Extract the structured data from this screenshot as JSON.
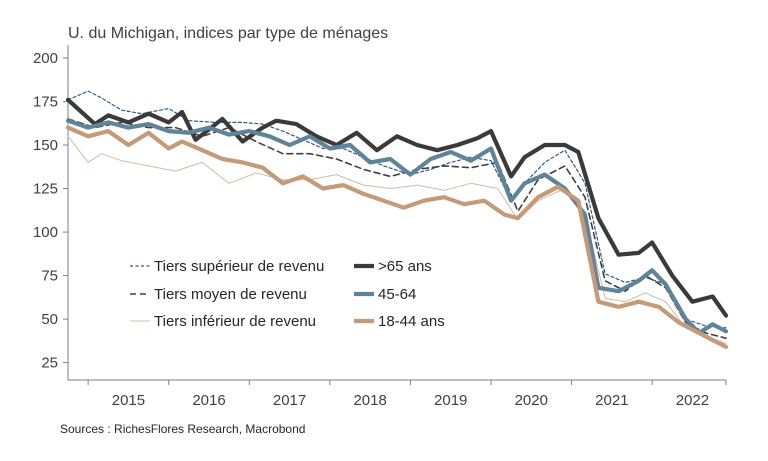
{
  "chart_data": {
    "type": "line",
    "title": "U. du Michigan, indices par type de ménages",
    "source": "Sources : RichesFlores Research, Macrobond",
    "x_start": "2014-10",
    "x_end": "2022-12",
    "ylim": [
      25,
      200
    ],
    "yticks": [
      25,
      50,
      75,
      100,
      125,
      150,
      175,
      200
    ],
    "xtick_labels": [
      {
        "label": "2015",
        "at": "2015-07"
      },
      {
        "label": "2016",
        "at": "2016-07"
      },
      {
        "label": "2017",
        "at": "2017-07"
      },
      {
        "label": "2018",
        "at": "2018-07"
      },
      {
        "label": "2019",
        "at": "2019-07"
      },
      {
        "label": "2020",
        "at": "2020-07"
      },
      {
        "label": "2021",
        "at": "2021-07"
      },
      {
        "label": "2022",
        "at": "2022-07"
      }
    ],
    "xtick_marks": [
      "2015-01",
      "2016-01",
      "2017-01",
      "2018-01",
      "2019-01",
      "2020-01",
      "2021-01",
      "2022-01",
      "2022-12"
    ],
    "legend_placement": "bottom-left",
    "grid": false,
    "series": [
      {
        "name": "Tiers supérieur de revenu",
        "color": "#2e5a8a",
        "style": "dotted",
        "points": [
          [
            "2014-10",
            176
          ],
          [
            "2015-01",
            181
          ],
          [
            "2015-03",
            177
          ],
          [
            "2015-06",
            170
          ],
          [
            "2015-09",
            168
          ],
          [
            "2016-01",
            171
          ],
          [
            "2016-04",
            164
          ],
          [
            "2016-08",
            163
          ],
          [
            "2016-12",
            163
          ],
          [
            "2017-03",
            162
          ],
          [
            "2017-06",
            158
          ],
          [
            "2017-09",
            153
          ],
          [
            "2017-12",
            148
          ],
          [
            "2018-03",
            148
          ],
          [
            "2018-06",
            143
          ],
          [
            "2018-09",
            138
          ],
          [
            "2019-01",
            133
          ],
          [
            "2019-04",
            136
          ],
          [
            "2019-07",
            140
          ],
          [
            "2019-10",
            143
          ],
          [
            "2020-01",
            141
          ],
          [
            "2020-04",
            118
          ],
          [
            "2020-06",
            128
          ],
          [
            "2020-09",
            140
          ],
          [
            "2020-12",
            147
          ],
          [
            "2021-03",
            128
          ],
          [
            "2021-06",
            76
          ],
          [
            "2021-09",
            71
          ],
          [
            "2021-12",
            74
          ],
          [
            "2022-03",
            70
          ],
          [
            "2022-06",
            50
          ],
          [
            "2022-09",
            46
          ],
          [
            "2022-12",
            45
          ]
        ]
      },
      {
        "name": "Tiers moyen de revenu",
        "color": "#404040",
        "style": "dashed",
        "points": [
          [
            "2014-10",
            165
          ],
          [
            "2015-02",
            160
          ],
          [
            "2015-06",
            163
          ],
          [
            "2015-10",
            160
          ],
          [
            "2016-02",
            160
          ],
          [
            "2016-06",
            155
          ],
          [
            "2016-10",
            160
          ],
          [
            "2017-02",
            152
          ],
          [
            "2017-06",
            145
          ],
          [
            "2017-10",
            145
          ],
          [
            "2018-02",
            142
          ],
          [
            "2018-06",
            136
          ],
          [
            "2018-10",
            132
          ],
          [
            "2019-02",
            136
          ],
          [
            "2019-06",
            138
          ],
          [
            "2019-10",
            137
          ],
          [
            "2020-02",
            140
          ],
          [
            "2020-05",
            112
          ],
          [
            "2020-08",
            130
          ],
          [
            "2020-12",
            138
          ],
          [
            "2021-03",
            120
          ],
          [
            "2021-06",
            72
          ],
          [
            "2021-09",
            66
          ],
          [
            "2021-12",
            75
          ],
          [
            "2022-03",
            68
          ],
          [
            "2022-06",
            48
          ],
          [
            "2022-09",
            42
          ],
          [
            "2022-12",
            39
          ]
        ]
      },
      {
        "name": "Tiers inférieur de revenu",
        "color": "#d9b8a0",
        "style": "thin",
        "points": [
          [
            "2014-10",
            155
          ],
          [
            "2015-01",
            140
          ],
          [
            "2015-03",
            145
          ],
          [
            "2015-06",
            141
          ],
          [
            "2015-10",
            138
          ],
          [
            "2016-02",
            135
          ],
          [
            "2016-06",
            140
          ],
          [
            "2016-10",
            128
          ],
          [
            "2017-02",
            134
          ],
          [
            "2017-06",
            130
          ],
          [
            "2017-10",
            130
          ],
          [
            "2018-02",
            133
          ],
          [
            "2018-06",
            127
          ],
          [
            "2018-10",
            125
          ],
          [
            "2019-02",
            127
          ],
          [
            "2019-06",
            124
          ],
          [
            "2019-10",
            128
          ],
          [
            "2020-02",
            125
          ],
          [
            "2020-05",
            107
          ],
          [
            "2020-08",
            118
          ],
          [
            "2020-12",
            125
          ],
          [
            "2021-03",
            110
          ],
          [
            "2021-06",
            62
          ],
          [
            "2021-09",
            60
          ],
          [
            "2021-12",
            65
          ],
          [
            "2022-03",
            60
          ],
          [
            "2022-06",
            45
          ],
          [
            "2022-09",
            40
          ],
          [
            "2022-12",
            36
          ]
        ]
      },
      {
        "name": ">65 ans",
        "color": "#3a3a3a",
        "style": "thick",
        "points": [
          [
            "2014-10",
            176
          ],
          [
            "2015-02",
            162
          ],
          [
            "2015-04",
            167
          ],
          [
            "2015-07",
            163
          ],
          [
            "2015-10",
            168
          ],
          [
            "2016-01",
            163
          ],
          [
            "2016-03",
            169
          ],
          [
            "2016-05",
            153
          ],
          [
            "2016-09",
            165
          ],
          [
            "2016-12",
            152
          ],
          [
            "2017-03",
            160
          ],
          [
            "2017-05",
            164
          ],
          [
            "2017-08",
            162
          ],
          [
            "2017-11",
            155
          ],
          [
            "2018-02",
            150
          ],
          [
            "2018-05",
            157
          ],
          [
            "2018-08",
            147
          ],
          [
            "2018-11",
            155
          ],
          [
            "2019-02",
            150
          ],
          [
            "2019-05",
            147
          ],
          [
            "2019-08",
            150
          ],
          [
            "2019-11",
            154
          ],
          [
            "2020-01",
            158
          ],
          [
            "2020-04",
            132
          ],
          [
            "2020-06",
            143
          ],
          [
            "2020-09",
            150
          ],
          [
            "2020-12",
            150
          ],
          [
            "2021-02",
            146
          ],
          [
            "2021-05",
            108
          ],
          [
            "2021-08",
            87
          ],
          [
            "2021-11",
            88
          ],
          [
            "2022-01",
            94
          ],
          [
            "2022-04",
            75
          ],
          [
            "2022-07",
            60
          ],
          [
            "2022-10",
            63
          ],
          [
            "2022-12",
            52
          ]
        ]
      },
      {
        "name": "45-64",
        "color": "#5f8499",
        "style": "thick",
        "points": [
          [
            "2014-10",
            164
          ],
          [
            "2015-01",
            160
          ],
          [
            "2015-04",
            163
          ],
          [
            "2015-07",
            160
          ],
          [
            "2015-10",
            162
          ],
          [
            "2016-01",
            158
          ],
          [
            "2016-04",
            157
          ],
          [
            "2016-07",
            160
          ],
          [
            "2016-10",
            156
          ],
          [
            "2017-01",
            158
          ],
          [
            "2017-04",
            155
          ],
          [
            "2017-07",
            150
          ],
          [
            "2017-10",
            155
          ],
          [
            "2018-01",
            148
          ],
          [
            "2018-04",
            150
          ],
          [
            "2018-07",
            140
          ],
          [
            "2018-10",
            142
          ],
          [
            "2019-01",
            133
          ],
          [
            "2019-04",
            142
          ],
          [
            "2019-07",
            146
          ],
          [
            "2019-10",
            141
          ],
          [
            "2020-01",
            148
          ],
          [
            "2020-04",
            118
          ],
          [
            "2020-06",
            128
          ],
          [
            "2020-09",
            133
          ],
          [
            "2020-12",
            125
          ],
          [
            "2021-03",
            110
          ],
          [
            "2021-05",
            68
          ],
          [
            "2021-08",
            66
          ],
          [
            "2021-11",
            72
          ],
          [
            "2022-01",
            78
          ],
          [
            "2022-03",
            70
          ],
          [
            "2022-06",
            50
          ],
          [
            "2022-08",
            42
          ],
          [
            "2022-10",
            47
          ],
          [
            "2022-12",
            43
          ]
        ]
      },
      {
        "name": "18-44 ans",
        "color": "#c49a78",
        "style": "thick",
        "points": [
          [
            "2014-10",
            160
          ],
          [
            "2015-01",
            155
          ],
          [
            "2015-04",
            158
          ],
          [
            "2015-07",
            150
          ],
          [
            "2015-10",
            157
          ],
          [
            "2016-01",
            148
          ],
          [
            "2016-03",
            152
          ],
          [
            "2016-06",
            147
          ],
          [
            "2016-09",
            142
          ],
          [
            "2016-12",
            140
          ],
          [
            "2017-03",
            137
          ],
          [
            "2017-06",
            128
          ],
          [
            "2017-09",
            132
          ],
          [
            "2017-12",
            125
          ],
          [
            "2018-03",
            127
          ],
          [
            "2018-06",
            122
          ],
          [
            "2018-09",
            118
          ],
          [
            "2018-12",
            114
          ],
          [
            "2019-03",
            118
          ],
          [
            "2019-06",
            120
          ],
          [
            "2019-09",
            116
          ],
          [
            "2019-12",
            118
          ],
          [
            "2020-03",
            110
          ],
          [
            "2020-05",
            108
          ],
          [
            "2020-08",
            120
          ],
          [
            "2020-11",
            126
          ],
          [
            "2021-02",
            118
          ],
          [
            "2021-05",
            60
          ],
          [
            "2021-08",
            57
          ],
          [
            "2021-11",
            60
          ],
          [
            "2022-02",
            57
          ],
          [
            "2022-05",
            48
          ],
          [
            "2022-08",
            42
          ],
          [
            "2022-10",
            38
          ],
          [
            "2022-12",
            34
          ]
        ]
      }
    ]
  }
}
